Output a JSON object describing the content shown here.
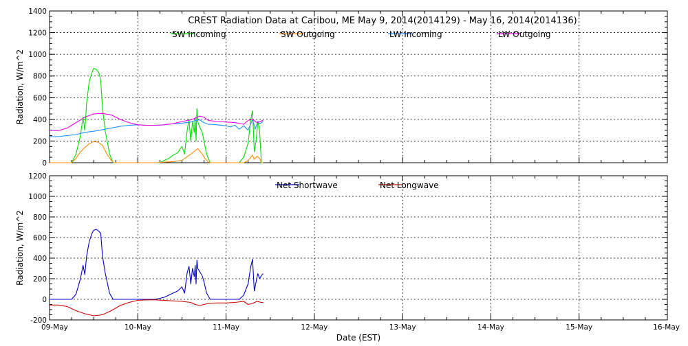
{
  "chart_data": [
    {
      "type": "line",
      "title": "CREST Radiation Data at Caribou, ME   May  9, 2014(2014129) - May 16, 2014(2014136)",
      "ylabel": "Radiation, W/m^2",
      "xlabel": "",
      "x_unit": "days since 09-May-2014 00:00",
      "ylim": [
        0,
        1400
      ],
      "yticks": [
        0,
        200,
        400,
        600,
        800,
        1000,
        1200,
        1400
      ],
      "grid": true,
      "legend_position": "top-center",
      "series": [
        {
          "name": "SW Incoming",
          "color": "#00dd00",
          "points": [
            [
              0,
              0
            ],
            [
              0.25,
              0
            ],
            [
              0.3,
              80
            ],
            [
              0.35,
              250
            ],
            [
              0.38,
              420
            ],
            [
              0.4,
              300
            ],
            [
              0.42,
              550
            ],
            [
              0.45,
              750
            ],
            [
              0.48,
              830
            ],
            [
              0.5,
              870
            ],
            [
              0.53,
              860
            ],
            [
              0.56,
              830
            ],
            [
              0.58,
              760
            ],
            [
              0.6,
              500
            ],
            [
              0.63,
              300
            ],
            [
              0.68,
              80
            ],
            [
              0.72,
              0
            ],
            [
              1.2,
              0
            ],
            [
              1.25,
              0
            ],
            [
              1.3,
              20
            ],
            [
              1.35,
              40
            ],
            [
              1.4,
              70
            ],
            [
              1.45,
              90
            ],
            [
              1.5,
              150
            ],
            [
              1.53,
              80
            ],
            [
              1.56,
              300
            ],
            [
              1.58,
              400
            ],
            [
              1.6,
              200
            ],
            [
              1.62,
              380
            ],
            [
              1.64,
              280
            ],
            [
              1.65,
              420
            ],
            [
              1.66,
              200
            ],
            [
              1.67,
              500
            ],
            [
              1.68,
              380
            ],
            [
              1.7,
              330
            ],
            [
              1.73,
              280
            ],
            [
              1.75,
              200
            ],
            [
              1.78,
              80
            ],
            [
              1.82,
              0
            ],
            [
              2.1,
              0
            ],
            [
              2.15,
              0
            ],
            [
              2.2,
              50
            ],
            [
              2.25,
              180
            ],
            [
              2.28,
              400
            ],
            [
              2.3,
              480
            ],
            [
              2.31,
              300
            ],
            [
              2.32,
              100
            ],
            [
              2.34,
              200
            ],
            [
              2.36,
              380
            ],
            [
              2.38,
              300
            ],
            [
              2.4,
              0
            ],
            [
              2.42,
              0
            ]
          ]
        },
        {
          "name": "SW Outgoing",
          "color": "#ff8c00",
          "points": [
            [
              0,
              0
            ],
            [
              0.25,
              0
            ],
            [
              0.3,
              40
            ],
            [
              0.35,
              100
            ],
            [
              0.4,
              140
            ],
            [
              0.45,
              175
            ],
            [
              0.5,
              195
            ],
            [
              0.55,
              190
            ],
            [
              0.6,
              160
            ],
            [
              0.65,
              80
            ],
            [
              0.7,
              20
            ],
            [
              0.73,
              0
            ],
            [
              1.2,
              0
            ],
            [
              1.3,
              5
            ],
            [
              1.4,
              10
            ],
            [
              1.5,
              20
            ],
            [
              1.55,
              50
            ],
            [
              1.6,
              80
            ],
            [
              1.65,
              110
            ],
            [
              1.68,
              130
            ],
            [
              1.7,
              110
            ],
            [
              1.73,
              80
            ],
            [
              1.76,
              40
            ],
            [
              1.8,
              5
            ],
            [
              1.83,
              0
            ],
            [
              2.2,
              0
            ],
            [
              2.25,
              20
            ],
            [
              2.3,
              70
            ],
            [
              2.32,
              30
            ],
            [
              2.35,
              60
            ],
            [
              2.38,
              40
            ],
            [
              2.4,
              0
            ],
            [
              2.42,
              0
            ]
          ]
        },
        {
          "name": "LW Incoming",
          "color": "#1e90ff",
          "points": [
            [
              0,
              240
            ],
            [
              0.1,
              240
            ],
            [
              0.2,
              250
            ],
            [
              0.3,
              260
            ],
            [
              0.4,
              280
            ],
            [
              0.5,
              290
            ],
            [
              0.6,
              305
            ],
            [
              0.7,
              320
            ],
            [
              0.8,
              335
            ],
            [
              0.9,
              345
            ],
            [
              1.0,
              350
            ],
            [
              1.1,
              345
            ],
            [
              1.2,
              345
            ],
            [
              1.3,
              350
            ],
            [
              1.4,
              360
            ],
            [
              1.5,
              365
            ],
            [
              1.6,
              375
            ],
            [
              1.65,
              390
            ],
            [
              1.7,
              395
            ],
            [
              1.75,
              370
            ],
            [
              1.8,
              355
            ],
            [
              1.9,
              350
            ],
            [
              2.0,
              340
            ],
            [
              2.05,
              330
            ],
            [
              2.1,
              345
            ],
            [
              2.15,
              310
            ],
            [
              2.2,
              340
            ],
            [
              2.25,
              300
            ],
            [
              2.3,
              400
            ],
            [
              2.33,
              310
            ],
            [
              2.36,
              380
            ],
            [
              2.38,
              360
            ],
            [
              2.4,
              370
            ],
            [
              2.42,
              380
            ]
          ]
        },
        {
          "name": "LW Outgoing",
          "color": "#ee00ee",
          "points": [
            [
              0,
              300
            ],
            [
              0.1,
              295
            ],
            [
              0.2,
              320
            ],
            [
              0.3,
              370
            ],
            [
              0.4,
              420
            ],
            [
              0.5,
              450
            ],
            [
              0.6,
              455
            ],
            [
              0.7,
              440
            ],
            [
              0.8,
              400
            ],
            [
              0.9,
              370
            ],
            [
              1.0,
              350
            ],
            [
              1.1,
              345
            ],
            [
              1.2,
              345
            ],
            [
              1.3,
              350
            ],
            [
              1.4,
              360
            ],
            [
              1.5,
              380
            ],
            [
              1.6,
              395
            ],
            [
              1.65,
              410
            ],
            [
              1.7,
              430
            ],
            [
              1.75,
              420
            ],
            [
              1.8,
              390
            ],
            [
              1.9,
              380
            ],
            [
              2.0,
              375
            ],
            [
              2.1,
              370
            ],
            [
              2.2,
              355
            ],
            [
              2.25,
              390
            ],
            [
              2.3,
              400
            ],
            [
              2.35,
              370
            ],
            [
              2.4,
              385
            ],
            [
              2.42,
              390
            ]
          ]
        }
      ]
    },
    {
      "type": "line",
      "title": "",
      "ylabel": "Radiation, W/m^2",
      "xlabel": "Date (EST)",
      "x_unit": "days since 09-May-2014 00:00",
      "ylim": [
        -200,
        1200
      ],
      "yticks": [
        -200,
        0,
        200,
        400,
        600,
        800,
        1000,
        1200
      ],
      "xlim": [
        0,
        7
      ],
      "xticks": [
        "09-May",
        "10-May",
        "11-May",
        "12-May",
        "13-May",
        "14-May",
        "15-May",
        "16-May"
      ],
      "grid": true,
      "legend_position": "top-center",
      "series": [
        {
          "name": "Net Shortwave",
          "color": "#0000cc",
          "points": [
            [
              0,
              0
            ],
            [
              0.25,
              0
            ],
            [
              0.3,
              50
            ],
            [
              0.35,
              200
            ],
            [
              0.38,
              330
            ],
            [
              0.4,
              240
            ],
            [
              0.42,
              420
            ],
            [
              0.45,
              560
            ],
            [
              0.48,
              640
            ],
            [
              0.5,
              670
            ],
            [
              0.53,
              680
            ],
            [
              0.56,
              660
            ],
            [
              0.58,
              640
            ],
            [
              0.6,
              420
            ],
            [
              0.63,
              260
            ],
            [
              0.68,
              60
            ],
            [
              0.72,
              0
            ],
            [
              1.2,
              0
            ],
            [
              1.3,
              20
            ],
            [
              1.4,
              60
            ],
            [
              1.45,
              80
            ],
            [
              1.5,
              120
            ],
            [
              1.53,
              60
            ],
            [
              1.56,
              260
            ],
            [
              1.58,
              320
            ],
            [
              1.6,
              150
            ],
            [
              1.62,
              300
            ],
            [
              1.64,
              220
            ],
            [
              1.65,
              330
            ],
            [
              1.66,
              150
            ],
            [
              1.67,
              380
            ],
            [
              1.68,
              300
            ],
            [
              1.7,
              270
            ],
            [
              1.73,
              230
            ],
            [
              1.75,
              170
            ],
            [
              1.78,
              60
            ],
            [
              1.82,
              0
            ],
            [
              2.1,
              0
            ],
            [
              2.15,
              0
            ],
            [
              2.2,
              40
            ],
            [
              2.25,
              150
            ],
            [
              2.28,
              320
            ],
            [
              2.3,
              390
            ],
            [
              2.31,
              240
            ],
            [
              2.32,
              80
            ],
            [
              2.34,
              170
            ],
            [
              2.36,
              250
            ],
            [
              2.38,
              200
            ],
            [
              2.4,
              230
            ],
            [
              2.42,
              250
            ]
          ]
        },
        {
          "name": "Net Longwave",
          "color": "#cc0000",
          "points": [
            [
              0,
              -55
            ],
            [
              0.1,
              -55
            ],
            [
              0.2,
              -70
            ],
            [
              0.3,
              -110
            ],
            [
              0.4,
              -140
            ],
            [
              0.5,
              -160
            ],
            [
              0.6,
              -150
            ],
            [
              0.7,
              -110
            ],
            [
              0.8,
              -60
            ],
            [
              0.9,
              -30
            ],
            [
              1.0,
              -10
            ],
            [
              1.1,
              -5
            ],
            [
              1.2,
              -5
            ],
            [
              1.3,
              -10
            ],
            [
              1.4,
              -15
            ],
            [
              1.5,
              -20
            ],
            [
              1.6,
              -30
            ],
            [
              1.65,
              -50
            ],
            [
              1.7,
              -60
            ],
            [
              1.75,
              -50
            ],
            [
              1.8,
              -40
            ],
            [
              1.9,
              -35
            ],
            [
              2.0,
              -35
            ],
            [
              2.1,
              -30
            ],
            [
              2.2,
              -20
            ],
            [
              2.25,
              -50
            ],
            [
              2.3,
              -40
            ],
            [
              2.35,
              -20
            ],
            [
              2.4,
              -30
            ],
            [
              2.42,
              -30
            ]
          ]
        }
      ]
    }
  ]
}
